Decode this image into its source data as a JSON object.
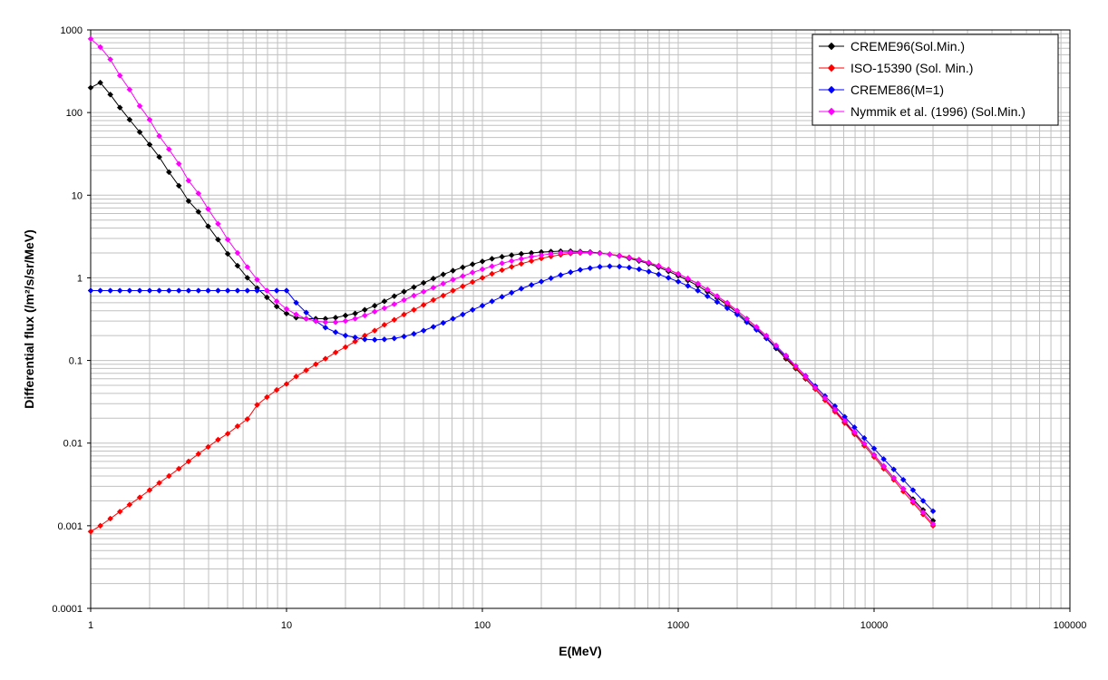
{
  "chart_data": {
    "type": "line",
    "xscale": "log",
    "yscale": "log",
    "xlabel": "E(MeV)",
    "ylabel": "Differential flux (/m²/s/sr/MeV)",
    "xlim": [
      1,
      100000
    ],
    "ylim": [
      0.0001,
      1000
    ],
    "x_ticks": [
      "1",
      "10",
      "100",
      "1000",
      "10000",
      "100000"
    ],
    "y_ticks": [
      "0.0001",
      "0.001",
      "0.01",
      "0.1",
      "1",
      "10",
      "100",
      "1000"
    ],
    "grid": "major and minor",
    "legend_position": "top-right",
    "series": [
      {
        "name": "CREME96(Sol.Min.)",
        "color": "#000000",
        "x": [
          1,
          1.12,
          1.26,
          1.41,
          1.58,
          1.78,
          2,
          2.24,
          2.51,
          2.82,
          3.16,
          3.55,
          3.98,
          4.47,
          5.01,
          5.62,
          6.31,
          7.08,
          7.94,
          8.91,
          10,
          11.2,
          12.6,
          14.1,
          15.8,
          17.8,
          20,
          22.4,
          25.1,
          28.2,
          31.6,
          35.5,
          39.8,
          44.7,
          50.1,
          56.2,
          63.1,
          70.8,
          79.4,
          89.1,
          100,
          112,
          126,
          141,
          158,
          178,
          200,
          224,
          251,
          282,
          316,
          355,
          398,
          447,
          501,
          562,
          631,
          708,
          794,
          891,
          1000,
          1120,
          1260,
          1410,
          1580,
          1780,
          2000,
          2240,
          2510,
          2820,
          3160,
          3550,
          3980,
          4470,
          5010,
          5620,
          6310,
          7080,
          7940,
          8910,
          10000,
          11200,
          12600,
          14100,
          15800,
          17800,
          20000
        ],
        "y": [
          200,
          230,
          165,
          115,
          82,
          58,
          41,
          29,
          19,
          13,
          8.5,
          6.3,
          4.2,
          2.9,
          1.95,
          1.4,
          1.0,
          0.75,
          0.58,
          0.45,
          0.37,
          0.33,
          0.32,
          0.32,
          0.32,
          0.33,
          0.35,
          0.37,
          0.41,
          0.46,
          0.52,
          0.6,
          0.68,
          0.77,
          0.87,
          0.98,
          1.1,
          1.22,
          1.34,
          1.46,
          1.58,
          1.7,
          1.8,
          1.88,
          1.95,
          2.0,
          2.05,
          2.08,
          2.1,
          2.1,
          2.08,
          2.05,
          2.0,
          1.92,
          1.83,
          1.72,
          1.6,
          1.48,
          1.34,
          1.2,
          1.06,
          0.93,
          0.8,
          0.68,
          0.57,
          0.47,
          0.38,
          0.3,
          0.24,
          0.185,
          0.14,
          0.105,
          0.08,
          0.06,
          0.045,
          0.033,
          0.025,
          0.018,
          0.0133,
          0.0098,
          0.0072,
          0.0052,
          0.0038,
          0.0028,
          0.0021,
          0.00155,
          0.00115
        ]
      },
      {
        "name": "ISO-15390 (Sol. Min.)",
        "color": "#ff0000",
        "x": [
          1,
          1.12,
          1.26,
          1.41,
          1.58,
          1.78,
          2,
          2.24,
          2.51,
          2.82,
          3.16,
          3.55,
          3.98,
          4.47,
          5.01,
          5.62,
          6.31,
          7.08,
          7.94,
          8.91,
          10,
          11.2,
          12.6,
          14.1,
          15.8,
          17.8,
          20,
          22.4,
          25.1,
          28.2,
          31.6,
          35.5,
          39.8,
          44.7,
          50.1,
          56.2,
          63.1,
          70.8,
          79.4,
          89.1,
          100,
          112,
          126,
          141,
          158,
          178,
          200,
          224,
          251,
          282,
          316,
          355,
          398,
          447,
          501,
          562,
          631,
          708,
          794,
          891,
          1000,
          1120,
          1260,
          1410,
          1580,
          1780,
          2000,
          2240,
          2510,
          2820,
          3160,
          3550,
          3980,
          4470,
          5010,
          5620,
          6310,
          7080,
          7940,
          8910,
          10000,
          11200,
          12600,
          14100,
          15800,
          17800,
          20000
        ],
        "y": [
          0.00085,
          0.001,
          0.00122,
          0.00148,
          0.0018,
          0.0022,
          0.0027,
          0.0033,
          0.004,
          0.0049,
          0.006,
          0.0074,
          0.009,
          0.011,
          0.013,
          0.016,
          0.0195,
          0.029,
          0.036,
          0.044,
          0.052,
          0.064,
          0.076,
          0.09,
          0.105,
          0.125,
          0.145,
          0.17,
          0.2,
          0.23,
          0.27,
          0.31,
          0.36,
          0.41,
          0.47,
          0.54,
          0.61,
          0.7,
          0.79,
          0.89,
          1.0,
          1.12,
          1.24,
          1.36,
          1.48,
          1.6,
          1.72,
          1.82,
          1.9,
          1.97,
          2.0,
          2.0,
          1.98,
          1.93,
          1.86,
          1.77,
          1.66,
          1.53,
          1.4,
          1.26,
          1.12,
          0.98,
          0.85,
          0.72,
          0.6,
          0.49,
          0.4,
          0.32,
          0.25,
          0.19,
          0.145,
          0.11,
          0.082,
          0.061,
          0.045,
          0.033,
          0.024,
          0.0175,
          0.0128,
          0.0093,
          0.0068,
          0.0049,
          0.0036,
          0.0026,
          0.0019,
          0.00137,
          0.001
        ]
      },
      {
        "name": "CREME86(M=1)",
        "color": "#0000ff",
        "x": [
          1,
          1.12,
          1.26,
          1.41,
          1.58,
          1.78,
          2,
          2.24,
          2.51,
          2.82,
          3.16,
          3.55,
          3.98,
          4.47,
          5.01,
          5.62,
          6.31,
          7.08,
          7.94,
          8.91,
          10,
          11.2,
          12.6,
          14.1,
          15.8,
          17.8,
          20,
          22.4,
          25.1,
          28.2,
          31.6,
          35.5,
          39.8,
          44.7,
          50.1,
          56.2,
          63.1,
          70.8,
          79.4,
          89.1,
          100,
          112,
          126,
          141,
          158,
          178,
          200,
          224,
          251,
          282,
          316,
          355,
          398,
          447,
          501,
          562,
          631,
          708,
          794,
          891,
          1000,
          1120,
          1260,
          1410,
          1580,
          1780,
          2000,
          2240,
          2510,
          2820,
          3160,
          3550,
          3980,
          4470,
          5010,
          5620,
          6310,
          7080,
          7940,
          8910,
          10000,
          11200,
          12600,
          14100,
          15800,
          17800,
          20000
        ],
        "y": [
          0.7,
          0.7,
          0.7,
          0.7,
          0.7,
          0.7,
          0.7,
          0.7,
          0.7,
          0.7,
          0.7,
          0.7,
          0.7,
          0.7,
          0.7,
          0.7,
          0.7,
          0.7,
          0.7,
          0.7,
          0.7,
          0.5,
          0.38,
          0.3,
          0.25,
          0.22,
          0.2,
          0.19,
          0.18,
          0.178,
          0.18,
          0.185,
          0.195,
          0.21,
          0.23,
          0.255,
          0.285,
          0.32,
          0.36,
          0.41,
          0.46,
          0.52,
          0.59,
          0.66,
          0.74,
          0.82,
          0.9,
          0.99,
          1.08,
          1.17,
          1.25,
          1.31,
          1.36,
          1.38,
          1.37,
          1.33,
          1.27,
          1.19,
          1.1,
          1.0,
          0.9,
          0.8,
          0.7,
          0.6,
          0.51,
          0.43,
          0.36,
          0.29,
          0.235,
          0.185,
          0.145,
          0.112,
          0.086,
          0.065,
          0.049,
          0.037,
          0.028,
          0.0208,
          0.0155,
          0.0115,
          0.0086,
          0.0064,
          0.0048,
          0.0036,
          0.0027,
          0.002,
          0.0015
        ]
      },
      {
        "name": "Nymmik et al. (1996) (Sol.Min.)",
        "color": "#ff00ff",
        "x": [
          1,
          1.12,
          1.26,
          1.41,
          1.58,
          1.78,
          2,
          2.24,
          2.51,
          2.82,
          3.16,
          3.55,
          3.98,
          4.47,
          5.01,
          5.62,
          6.31,
          7.08,
          7.94,
          8.91,
          10,
          11.2,
          12.6,
          14.1,
          15.8,
          17.8,
          20,
          22.4,
          25.1,
          28.2,
          31.6,
          35.5,
          39.8,
          44.7,
          50.1,
          56.2,
          63.1,
          70.8,
          79.4,
          89.1,
          100,
          112,
          126,
          141,
          158,
          178,
          200,
          224,
          251,
          282,
          316,
          355,
          398,
          447,
          501,
          562,
          631,
          708,
          794,
          891,
          1000,
          1120,
          1260,
          1410,
          1580,
          1780,
          2000,
          2240,
          2510,
          2820,
          3160,
          3550,
          3980,
          4470,
          5010,
          5620,
          6310,
          7080,
          7940,
          8910,
          10000,
          11200,
          12600,
          14100,
          15800,
          17800,
          20000
        ],
        "y": [
          780,
          620,
          440,
          280,
          190,
          120,
          82,
          52,
          36,
          24,
          15,
          10.5,
          6.8,
          4.5,
          2.9,
          2.0,
          1.35,
          0.95,
          0.7,
          0.52,
          0.42,
          0.36,
          0.32,
          0.3,
          0.29,
          0.29,
          0.3,
          0.32,
          0.35,
          0.39,
          0.43,
          0.48,
          0.54,
          0.61,
          0.68,
          0.76,
          0.85,
          0.95,
          1.05,
          1.16,
          1.27,
          1.38,
          1.5,
          1.6,
          1.7,
          1.8,
          1.88,
          1.95,
          2.0,
          2.03,
          2.04,
          2.02,
          1.98,
          1.92,
          1.84,
          1.75,
          1.64,
          1.52,
          1.39,
          1.25,
          1.11,
          0.98,
          0.85,
          0.72,
          0.6,
          0.5,
          0.4,
          0.32,
          0.255,
          0.2,
          0.152,
          0.115,
          0.086,
          0.064,
          0.047,
          0.035,
          0.0255,
          0.0186,
          0.0136,
          0.0099,
          0.0072,
          0.0053,
          0.0038,
          0.0028,
          0.002,
          0.00145,
          0.00105
        ]
      }
    ]
  }
}
